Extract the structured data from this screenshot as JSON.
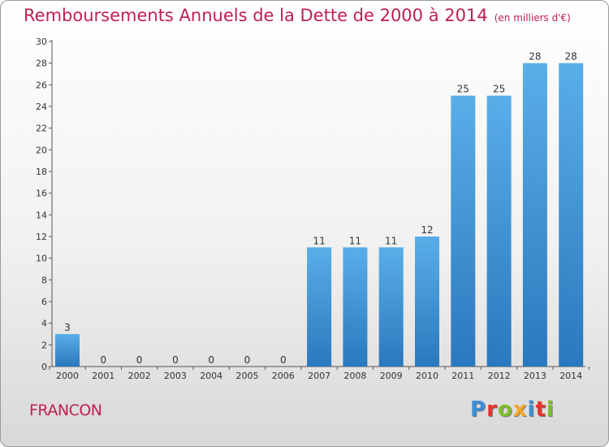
{
  "header": {
    "title": "Remboursements Annuels de la Dette de 2000 à 2014",
    "unit": "(en milliers d'€)"
  },
  "footer": {
    "commune": "FRANCON",
    "logo": {
      "letters": [
        "P",
        "r",
        "o",
        "x",
        "i",
        "t",
        "i"
      ],
      "colors": [
        "#3b8fd6",
        "#e8332e",
        "#7fbf2b",
        "#f5a623",
        "#3b8fd6",
        "#e8332e",
        "#7fbf2b"
      ]
    }
  },
  "colors": {
    "bar_light": "#5aaee8",
    "bar_dark": "#2a78bd",
    "title": "#c0204f"
  },
  "chart_data": {
    "type": "bar",
    "title": "Remboursements Annuels de la Dette de 2000 à 2014",
    "xlabel": "",
    "ylabel": "",
    "categories": [
      "2000",
      "2001",
      "2002",
      "2003",
      "2004",
      "2005",
      "2006",
      "2007",
      "2008",
      "2009",
      "2010",
      "2011",
      "2012",
      "2013",
      "2014"
    ],
    "values": [
      3,
      0,
      0,
      0,
      0,
      0,
      0,
      11,
      11,
      11,
      12,
      25,
      25,
      28,
      28
    ],
    "ylim": [
      0,
      30
    ],
    "yticks": [
      0,
      2,
      4,
      6,
      8,
      10,
      12,
      14,
      16,
      18,
      20,
      22,
      24,
      26,
      28,
      30
    ],
    "grid": false
  }
}
